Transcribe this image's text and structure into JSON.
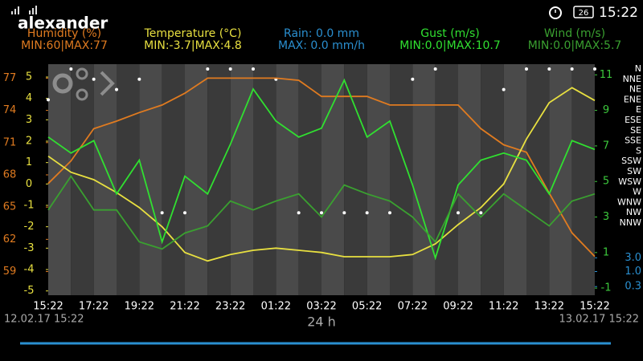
{
  "status_bar": {
    "user": "alexander",
    "battery": "26",
    "time": "15:22"
  },
  "chart_data": {
    "type": "line",
    "categories": [
      "15:22",
      null,
      "17:22",
      null,
      "19:22",
      null,
      "21:22",
      null,
      "23:22",
      null,
      "01:22",
      null,
      "03:22",
      null,
      "05:22",
      null,
      "07:22",
      null,
      "09:22",
      null,
      "11:22",
      null,
      "13:22",
      null,
      "15:22"
    ],
    "axes": {
      "humidity": {
        "ylim": [
          56.8,
          78.3
        ],
        "yticks": [
          77,
          74,
          71,
          68,
          65,
          62,
          59
        ],
        "color": "#e07b20"
      },
      "temperature": {
        "ylim": [
          -5.2,
          5.6
        ],
        "yticks": [
          5,
          4,
          3,
          2,
          1,
          0,
          -1,
          -2,
          -3,
          -4,
          -5
        ],
        "color": "#e8e040"
      },
      "wind": {
        "ylim": [
          -1.4,
          11.6
        ],
        "yticks": [
          11,
          9,
          7,
          5,
          3,
          1,
          -1
        ],
        "color": "#3cc83c"
      },
      "rain": {
        "ylim": [
          0.15,
          5.5
        ],
        "log": true,
        "yticks": [
          {
            "value": 3,
            "label": "3.0"
          },
          {
            "value": 1,
            "label": "1.0"
          },
          0.3
        ],
        "color": "#2a8fd0"
      }
    },
    "series": [
      {
        "name": "Humidity (%)",
        "range": "MIN:60|MAX:77",
        "axis": "humidity",
        "color": "#e07b20",
        "values": [
          67.2,
          69.3,
          72.3,
          73,
          73.8,
          74.5,
          75.6,
          77,
          77,
          77,
          77,
          76.8,
          75.3,
          75.3,
          75.3,
          74.5,
          74.5,
          74.5,
          74.5,
          72.3,
          70.8,
          70.1,
          66.3,
          62.6,
          60.4
        ]
      },
      {
        "name": "Temperature (°C)",
        "range": "MIN:-3.7|MAX:4.8",
        "axis": "temperature",
        "color": "#e8e040",
        "values": [
          1.3,
          0.55,
          0.2,
          -0.4,
          -1.1,
          -2.0,
          -3.2,
          -3.6,
          -3.3,
          -3.1,
          -3.0,
          -3.1,
          -3.2,
          -3.4,
          -3.4,
          -3.4,
          -3.3,
          -2.8,
          -1.9,
          -1.1,
          0.0,
          2.1,
          3.8,
          4.5,
          3.9
        ]
      },
      {
        "name": "Rain: 0.0 mm",
        "range": "MAX: 0.0 mm/h",
        "axis": "rain",
        "color": "#2a8fd0"
      },
      {
        "name": "Gust (m/s)",
        "range": "MIN:0.0|MAX:10.7",
        "axis": "wind",
        "color": "#30e030",
        "values": [
          7.5,
          6.6,
          7.3,
          4.3,
          6.2,
          1.6,
          5.3,
          4.3,
          7.1,
          10.2,
          8.4,
          7.5,
          8.0,
          10.7,
          7.5,
          8.4,
          4.8,
          0.7,
          4.8,
          6.2,
          6.6,
          6.2,
          4.3,
          7.3,
          6.8
        ]
      },
      {
        "name": "Wind (m/s)",
        "range": "MIN:0.0|MAX:5.7",
        "axis": "wind",
        "color": "#3aa030",
        "values": [
          3.4,
          5.3,
          3.4,
          3.4,
          1.6,
          1.2,
          2.1,
          2.5,
          3.9,
          3.4,
          3.9,
          4.3,
          3.0,
          4.8,
          4.3,
          3.9,
          3.0,
          1.6,
          4.3,
          3.0,
          4.3,
          3.4,
          2.5,
          3.9,
          4.3
        ]
      }
    ],
    "direction_labels": [
      "N",
      "NNE",
      "NE",
      "ENE",
      "E",
      "ESE",
      "SE",
      "SSE",
      "S",
      "SSW",
      "SW",
      "WSW",
      "W",
      "WNW",
      "NW",
      "NNW"
    ],
    "directions": [
      "ENE",
      "N",
      "NNE",
      "NE",
      "NNE",
      "NW",
      "NW",
      "N",
      "N",
      "N",
      "NNE",
      "NW",
      "NW",
      "NW",
      "NW",
      "NW",
      "NNE",
      "N",
      "NW",
      "NW",
      "NE",
      "N",
      "N",
      "N",
      "N"
    ]
  },
  "footer": {
    "start": "12.02.17 15:22",
    "span": "24 h",
    "end": "13.02.17 15:22"
  }
}
